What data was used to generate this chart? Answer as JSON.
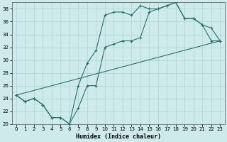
{
  "xlabel": "Humidex (Indice chaleur)",
  "xlim": [
    -0.5,
    23.5
  ],
  "ylim": [
    20,
    39
  ],
  "yticks": [
    20,
    22,
    24,
    26,
    28,
    30,
    32,
    34,
    36,
    38
  ],
  "xticks": [
    0,
    1,
    2,
    3,
    4,
    5,
    6,
    7,
    8,
    9,
    10,
    11,
    12,
    13,
    14,
    15,
    16,
    17,
    18,
    19,
    20,
    21,
    22,
    23
  ],
  "bg_color": "#ceeaea",
  "grid_color": "#aad4d4",
  "line_color": "#2a7070",
  "series_upper": {
    "x": [
      0,
      1,
      2,
      3,
      4,
      5,
      6,
      7,
      8,
      9,
      10,
      11,
      12,
      13,
      14,
      15,
      16,
      17,
      18,
      19,
      20,
      21,
      22,
      23
    ],
    "y": [
      24.5,
      23.5,
      24.0,
      23.0,
      21.0,
      21.0,
      20.0,
      26.0,
      29.5,
      31.5,
      37.0,
      37.5,
      37.5,
      37.0,
      38.5,
      38.0,
      38.0,
      38.5,
      39.0,
      36.5,
      36.5,
      35.5,
      35.0,
      33.0
    ]
  },
  "series_lower": {
    "x": [
      0,
      1,
      2,
      3,
      4,
      5,
      6,
      7,
      8,
      9,
      10,
      11,
      12,
      13,
      14,
      15,
      16,
      17,
      18,
      19,
      20,
      21,
      22,
      23
    ],
    "y": [
      24.5,
      23.5,
      24.0,
      23.0,
      21.0,
      21.0,
      20.0,
      22.5,
      26.0,
      26.0,
      32.0,
      32.5,
      33.0,
      33.0,
      33.5,
      37.5,
      38.0,
      38.5,
      39.0,
      36.5,
      36.5,
      35.5,
      33.0,
      33.0
    ]
  },
  "series_line": {
    "x": [
      0,
      23
    ],
    "y": [
      24.5,
      33.0
    ]
  }
}
